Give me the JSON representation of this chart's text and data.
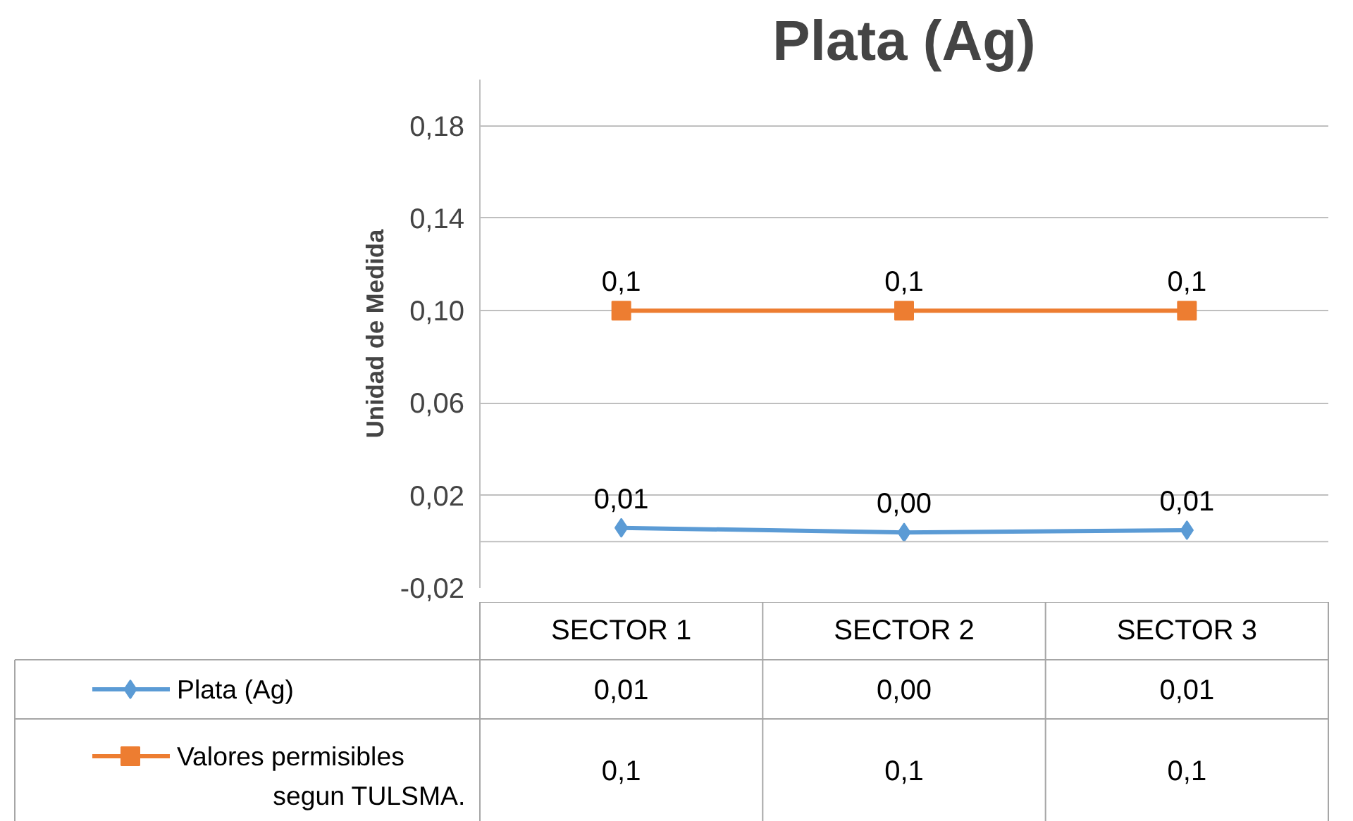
{
  "chart_data": {
    "type": "line",
    "title": "Plata (Ag)",
    "ylabel": "Unidad de Medida",
    "categories": [
      "SECTOR 1",
      "SECTOR 2",
      "SECTOR 3"
    ],
    "series": [
      {
        "name": "Plata (Ag)",
        "color": "#5b9bd5",
        "marker": "diamond",
        "values": [
          0.006,
          0.004,
          0.005
        ],
        "value_labels": [
          "0,01",
          "0,00",
          "0,01"
        ]
      },
      {
        "name": "Valores permisibles segun TULSMA.",
        "color": "#ed7d31",
        "marker": "square",
        "values": [
          0.1,
          0.1,
          0.1
        ],
        "value_labels": [
          "0,1",
          "0,1",
          "0,1"
        ]
      }
    ],
    "ylim": [
      -0.02,
      0.2
    ],
    "yticks": [
      {
        "value": -0.02,
        "label": "-0,02"
      },
      {
        "value": 0.02,
        "label": "0,02"
      },
      {
        "value": 0.06,
        "label": "0,06"
      },
      {
        "value": 0.1,
        "label": "0,10"
      },
      {
        "value": 0.14,
        "label": "0,14"
      },
      {
        "value": 0.18,
        "label": "0,18"
      }
    ],
    "ref_lines": [
      {
        "axis": "y",
        "value": 0,
        "color": "#bfbfbf"
      }
    ],
    "grid": "y",
    "legend": "bottom"
  }
}
